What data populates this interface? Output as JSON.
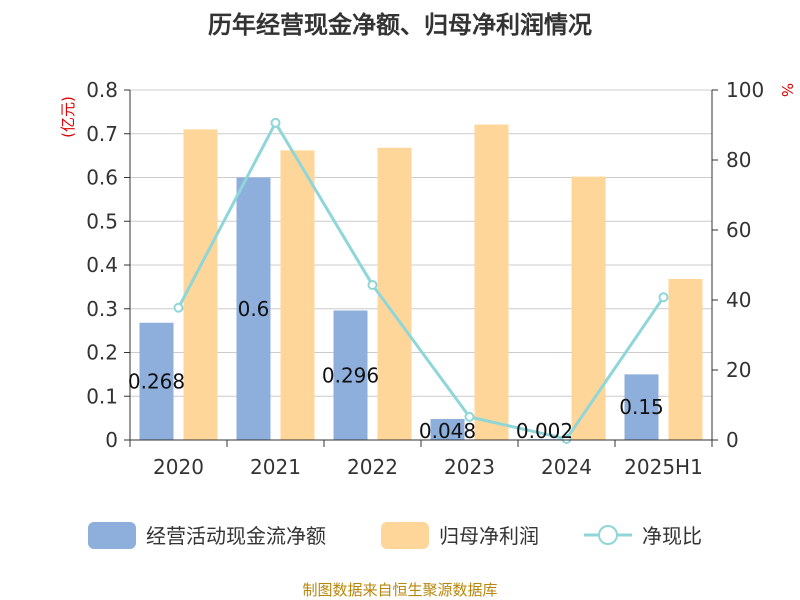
{
  "chart_data": {
    "type": "bar",
    "title": "历年经营现金净额、归母净利润情况",
    "categories": [
      "2020",
      "2021",
      "2022",
      "2023",
      "2024",
      "2025H1"
    ],
    "series": [
      {
        "name": "经营活动现金流净额",
        "type": "bar",
        "axis": "left",
        "color": "#8eaedb",
        "values": [
          0.268,
          0.6,
          0.296,
          0.048,
          0.002,
          0.15
        ],
        "labels": [
          "0.268",
          "0.6",
          "0.296",
          "0.048",
          "0.002",
          "0.15"
        ]
      },
      {
        "name": "归母净利润",
        "type": "bar",
        "axis": "left",
        "color": "#ffd699",
        "values": [
          0.71,
          0.662,
          0.668,
          0.721,
          0.602,
          0.368
        ]
      },
      {
        "name": "净现比",
        "type": "line",
        "axis": "right",
        "color": "#8fd6d9",
        "values": [
          37.8,
          90.6,
          44.3,
          6.6,
          0.3,
          40.8
        ]
      }
    ],
    "y_left": {
      "unit": "(亿元)",
      "ylim": [
        0,
        0.8
      ],
      "ticks": [
        "0",
        "0.1",
        "0.2",
        "0.3",
        "0.4",
        "0.5",
        "0.6",
        "0.7",
        "0.8"
      ]
    },
    "y_right": {
      "unit": "%",
      "ylim": [
        0,
        100
      ],
      "ticks": [
        "0",
        "20",
        "40",
        "60",
        "80",
        "100"
      ]
    },
    "grid": true,
    "legend": "bottom"
  },
  "source": "制图数据来自恒生聚源数据库"
}
